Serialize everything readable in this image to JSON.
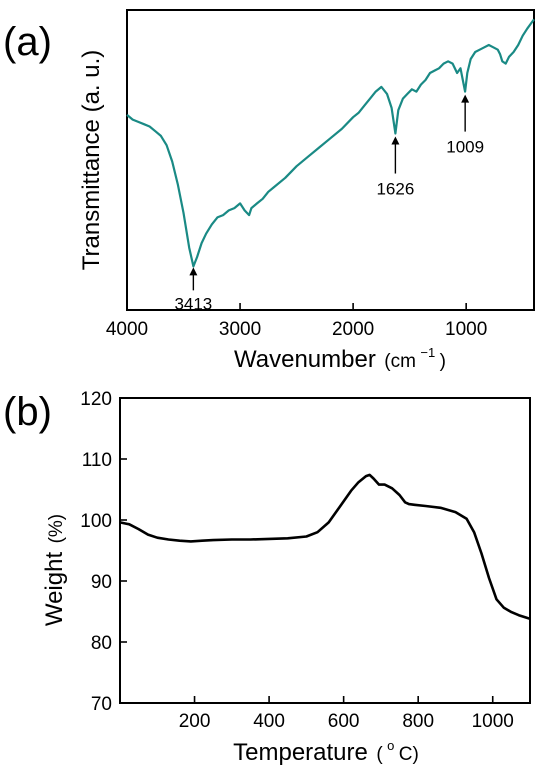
{
  "chart_data": [
    {
      "panel": "(a)",
      "type": "line",
      "xlabel_main": "Wavenumber",
      "xlabel_unit_open": "(cm",
      "xlabel_unit_sup": "−1",
      "xlabel_unit_close": ")",
      "ylabel": "Transmittance (a. u.)",
      "xlim": [
        4000,
        400
      ],
      "x_ticks": [
        4000,
        3000,
        2000,
        1000
      ],
      "y_ticks_labeled": false,
      "color": "#1a8a85",
      "series": [
        {
          "x": [
            4000,
            3950,
            3900,
            3850,
            3800,
            3750,
            3700,
            3650,
            3600,
            3550,
            3500,
            3450,
            3413,
            3380,
            3340,
            3300,
            3250,
            3200,
            3150,
            3100,
            3050,
            3000,
            2960,
            2920,
            2900,
            2850,
            2800,
            2750,
            2700,
            2600,
            2500,
            2400,
            2300,
            2200,
            2100,
            2000,
            1950,
            1900,
            1850,
            1800,
            1750,
            1700,
            1660,
            1626,
            1600,
            1560,
            1520,
            1480,
            1440,
            1400,
            1360,
            1320,
            1280,
            1240,
            1200,
            1160,
            1120,
            1080,
            1050,
            1030,
            1009,
            990,
            960,
            920,
            880,
            840,
            800,
            760,
            720,
            700,
            680,
            650,
            620,
            580,
            540,
            500,
            460,
            430,
            400
          ],
          "y": [
            0.7,
            0.68,
            0.67,
            0.66,
            0.65,
            0.63,
            0.61,
            0.57,
            0.5,
            0.4,
            0.28,
            0.13,
            0.05,
            0.09,
            0.15,
            0.19,
            0.23,
            0.26,
            0.27,
            0.29,
            0.3,
            0.32,
            0.29,
            0.27,
            0.3,
            0.32,
            0.34,
            0.37,
            0.39,
            0.43,
            0.48,
            0.52,
            0.56,
            0.6,
            0.64,
            0.69,
            0.71,
            0.74,
            0.77,
            0.8,
            0.82,
            0.79,
            0.73,
            0.62,
            0.72,
            0.77,
            0.79,
            0.81,
            0.8,
            0.83,
            0.85,
            0.88,
            0.89,
            0.9,
            0.92,
            0.93,
            0.92,
            0.88,
            0.9,
            0.85,
            0.8,
            0.88,
            0.94,
            0.97,
            0.98,
            0.99,
            1.0,
            0.99,
            0.98,
            0.96,
            0.93,
            0.92,
            0.95,
            0.97,
            1.0,
            1.04,
            1.07,
            1.09,
            1.11
          ]
        }
      ],
      "annotations": [
        {
          "text": "3413",
          "x": 3413
        },
        {
          "text": "1626",
          "x": 1626
        },
        {
          "text": "1009",
          "x": 1009
        }
      ]
    },
    {
      "panel": "(b)",
      "type": "line",
      "xlabel_main": "Temperature",
      "xlabel_unit_open": "(",
      "xlabel_unit_sup": "o",
      "xlabel_unit_close": "C)",
      "ylabel_main": "Weight",
      "ylabel_unit": "(%)",
      "xlim": [
        0,
        1100
      ],
      "ylim": [
        70,
        120
      ],
      "x_ticks": [
        200,
        400,
        600,
        800,
        1000
      ],
      "y_ticks": [
        70,
        80,
        90,
        100,
        110,
        120
      ],
      "color": "#000000",
      "series": [
        {
          "x": [
            0,
            25,
            50,
            75,
            100,
            130,
            160,
            190,
            220,
            250,
            300,
            350,
            400,
            450,
            500,
            530,
            560,
            590,
            620,
            640,
            660,
            670,
            680,
            695,
            710,
            730,
            750,
            765,
            775,
            790,
            820,
            860,
            900,
            930,
            950,
            970,
            990,
            1010,
            1030,
            1050,
            1070,
            1090,
            1100
          ],
          "y": [
            99.6,
            99.3,
            98.5,
            97.6,
            97.1,
            96.8,
            96.6,
            96.5,
            96.6,
            96.7,
            96.8,
            96.8,
            96.9,
            97.0,
            97.3,
            98.0,
            99.6,
            102.2,
            104.8,
            106.2,
            107.2,
            107.4,
            106.8,
            105.8,
            105.8,
            105.2,
            104.1,
            102.9,
            102.6,
            102.5,
            102.3,
            102.0,
            101.3,
            100.2,
            98.0,
            94.5,
            90.5,
            87.0,
            85.6,
            84.9,
            84.4,
            84.0,
            83.8
          ]
        }
      ]
    }
  ]
}
